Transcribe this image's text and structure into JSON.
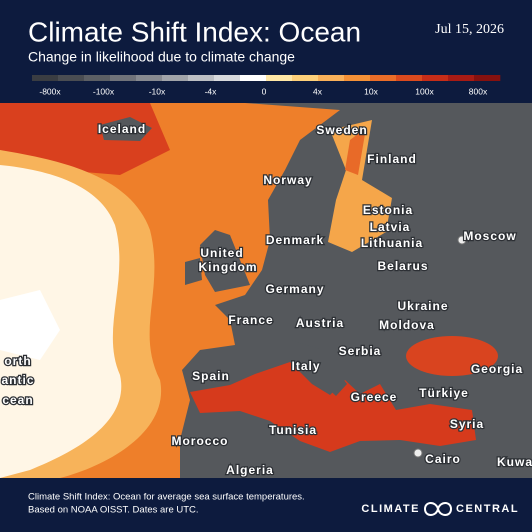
{
  "header": {
    "title": "Climate Shift Index: Ocean",
    "subtitle": "Change in likelihood due to climate change",
    "date": "Jul 15, 2026"
  },
  "legend": {
    "labels": [
      "-800x",
      "-100x",
      "-10x",
      "-4x",
      "0",
      "4x",
      "10x",
      "100x",
      "800x"
    ],
    "colors": [
      "#3a3d42",
      "#4a4d52",
      "#5c5f64",
      "#70737a",
      "#878a90",
      "#a1a4a9",
      "#bcbfc3",
      "#d7d9dc",
      "#ffffff",
      "#ffe7a6",
      "#fdd07a",
      "#f9b15a",
      "#f49137",
      "#ea6d28",
      "#db4a1e",
      "#c62d18",
      "#a81b14",
      "#86110f"
    ]
  },
  "map": {
    "places": [
      "Iceland",
      "Sweden",
      "Finland",
      "Norway",
      "Estonia",
      "Latvia",
      "Lithuania",
      "Denmark",
      "Moscow",
      "United",
      "Kingdom",
      "Belarus",
      "Germany",
      "Ukraine",
      "France",
      "Austria",
      "Moldova",
      "Serbia",
      "Georgia",
      "Spain",
      "Italy",
      "Greece",
      "Türkiye",
      "Syria",
      "Tunisia",
      "Morocco",
      "Cairo",
      "Algeria",
      "Kuwa",
      "orth",
      "antic",
      "cean"
    ]
  },
  "footer": {
    "note": [
      "Climate Shift Index: Ocean for average sea surface temperatures.",
      "Based on NOAA OISST. Dates are UTC."
    ],
    "logo": [
      "CLIMATE",
      "CENTRAL"
    ]
  }
}
